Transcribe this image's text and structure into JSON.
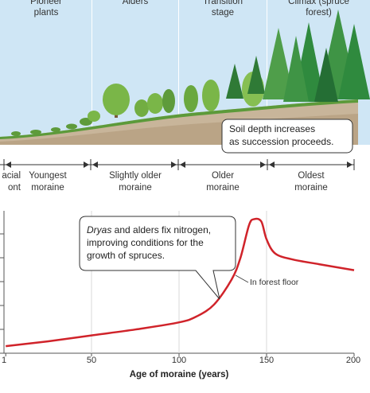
{
  "stages": [
    {
      "line1": "Pioneer",
      "line2": "plants"
    },
    {
      "line1": "Alders",
      "line2": ""
    },
    {
      "line1": "Transition",
      "line2": "stage"
    },
    {
      "line1": "Climax (spruce",
      "line2": "forest)"
    }
  ],
  "soil_callout": {
    "line1": "Soil depth increases",
    "line2": "as succession proceeds."
  },
  "moraines": [
    {
      "line1": "acial",
      "line2": "ont"
    },
    {
      "line1": "Youngest",
      "line2": "moraine"
    },
    {
      "line1": "Slightly older",
      "line2": "moraine"
    },
    {
      "line1": "Older",
      "line2": "moraine"
    },
    {
      "line1": "Oldest",
      "line2": "moraine"
    }
  ],
  "nitrogen_callout": {
    "italic": "Dryas",
    "rest": " and alders fix nitrogen, improving conditions for the growth of spruces."
  },
  "chart_data": {
    "type": "line",
    "xlabel": "Age of moraine (years)",
    "xlim": [
      0,
      200
    ],
    "xticks": [
      "1",
      "50",
      "100",
      "150",
      "200"
    ],
    "series": [
      {
        "name": "In forest floor",
        "x": [
          1,
          25,
          50,
          75,
          100,
          110,
          120,
          130,
          135,
          140,
          143,
          147,
          150,
          155,
          165,
          180,
          200
        ],
        "y": [
          0.3,
          0.5,
          0.75,
          1.0,
          1.3,
          1.55,
          2.05,
          3.1,
          4.0,
          5.4,
          5.65,
          5.55,
          4.8,
          4.2,
          3.95,
          3.75,
          3.5
        ]
      }
    ]
  }
}
